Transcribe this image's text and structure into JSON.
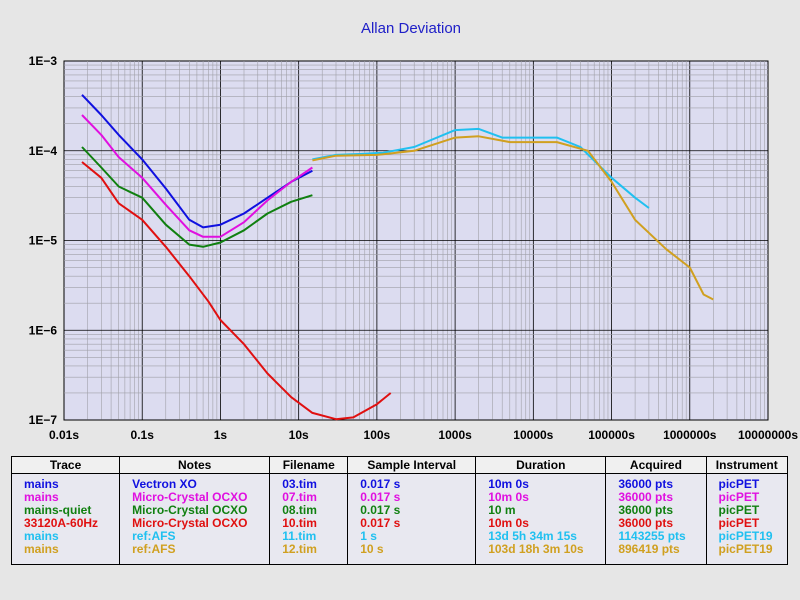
{
  "chart_data": {
    "type": "line",
    "title": "Allan Deviation",
    "xscale": "log",
    "yscale": "log",
    "xlim": [
      0.01,
      10000000
    ],
    "ylim": [
      1e-07,
      0.001
    ],
    "x_tick_labels": [
      "0.01s",
      "0.1s",
      "1s",
      "10s",
      "100s",
      "1000s",
      "10000s",
      "100000s",
      "1000000s",
      "10000000s"
    ],
    "y_tick_labels": [
      "1E−3",
      "1E−4",
      "1E−5",
      "1E−6",
      "1E−7"
    ],
    "series": [
      {
        "name": "Vectron XO",
        "color": "#1010e0",
        "points": [
          [
            0.017,
            0.00042
          ],
          [
            0.03,
            0.00025
          ],
          [
            0.05,
            0.00015
          ],
          [
            0.1,
            8e-05
          ],
          [
            0.2,
            3.8e-05
          ],
          [
            0.4,
            1.7e-05
          ],
          [
            0.6,
            1.4e-05
          ],
          [
            1,
            1.5e-05
          ],
          [
            2,
            2e-05
          ],
          [
            4,
            3e-05
          ],
          [
            8,
            4.5e-05
          ],
          [
            15,
            6e-05
          ]
        ]
      },
      {
        "name": "Micro-Crystal OCXO (mains)",
        "color": "#e010e0",
        "points": [
          [
            0.017,
            0.00025
          ],
          [
            0.03,
            0.00015
          ],
          [
            0.05,
            8.5e-05
          ],
          [
            0.1,
            5e-05
          ],
          [
            0.2,
            2.5e-05
          ],
          [
            0.4,
            1.3e-05
          ],
          [
            0.6,
            1.1e-05
          ],
          [
            1,
            1.1e-05
          ],
          [
            2,
            1.6e-05
          ],
          [
            4,
            2.8e-05
          ],
          [
            8,
            4.5e-05
          ],
          [
            15,
            6.5e-05
          ]
        ]
      },
      {
        "name": "Micro-Crystal OCXO (mains-quiet)",
        "color": "#108010",
        "points": [
          [
            0.017,
            0.00011
          ],
          [
            0.03,
            6.5e-05
          ],
          [
            0.05,
            4e-05
          ],
          [
            0.1,
            3e-05
          ],
          [
            0.2,
            1.5e-05
          ],
          [
            0.4,
            9e-06
          ],
          [
            0.6,
            8.5e-06
          ],
          [
            1,
            9.5e-06
          ],
          [
            2,
            1.3e-05
          ],
          [
            4,
            2e-05
          ],
          [
            8,
            2.7e-05
          ],
          [
            15,
            3.2e-05
          ]
        ]
      },
      {
        "name": "Micro-Crystal OCXO (33120A-60Hz)",
        "color": "#e01010",
        "points": [
          [
            0.017,
            7.5e-05
          ],
          [
            0.03,
            5e-05
          ],
          [
            0.05,
            2.6e-05
          ],
          [
            0.1,
            1.7e-05
          ],
          [
            0.2,
            8.5e-06
          ],
          [
            0.4,
            4e-06
          ],
          [
            0.7,
            2.1e-06
          ],
          [
            1,
            1.3e-06
          ],
          [
            2,
            7e-07
          ],
          [
            4,
            3.3e-07
          ],
          [
            8,
            1.8e-07
          ],
          [
            15,
            1.2e-07
          ],
          [
            30,
            1.02e-07
          ],
          [
            50,
            1.07e-07
          ],
          [
            100,
            1.5e-07
          ],
          [
            150,
            2e-07
          ]
        ]
      },
      {
        "name": "ref:AFS (mains)",
        "color": "#20c0f0",
        "points": [
          [
            15,
            8e-05
          ],
          [
            30,
            9e-05
          ],
          [
            60,
            9.2e-05
          ],
          [
            120,
            9.5e-05
          ],
          [
            300,
            0.00011
          ],
          [
            1000,
            0.00017
          ],
          [
            2000,
            0.000175
          ],
          [
            4000,
            0.00014
          ],
          [
            10000,
            0.00014
          ],
          [
            20000,
            0.00014
          ],
          [
            40000,
            0.00011
          ],
          [
            100000,
            5e-05
          ],
          [
            200000,
            3e-05
          ],
          [
            300000,
            2.3e-05
          ]
        ]
      },
      {
        "name": "ref:AFS (mains)",
        "color": "#d0a020",
        "points": [
          [
            15,
            7.8e-05
          ],
          [
            30,
            8.8e-05
          ],
          [
            100,
            9e-05
          ],
          [
            300,
            0.0001
          ],
          [
            1000,
            0.00014
          ],
          [
            2000,
            0.000145
          ],
          [
            5000,
            0.000125
          ],
          [
            10000,
            0.000125
          ],
          [
            20000,
            0.000125
          ],
          [
            50000,
            0.0001
          ],
          [
            100000,
            4.5e-05
          ],
          [
            200000,
            1.7e-05
          ],
          [
            500000,
            8e-06
          ],
          [
            1000000,
            5e-06
          ],
          [
            1500000,
            2.5e-06
          ],
          [
            2000000,
            2.2e-06
          ]
        ]
      }
    ]
  },
  "legend": {
    "headers": [
      "Trace",
      "Notes",
      "Filename",
      "Sample Interval",
      "Duration",
      "Acquired",
      "Instrument"
    ],
    "rows": [
      {
        "color": "#1010e0",
        "cells": [
          "mains",
          "Vectron XO",
          "03.tim",
          "0.017 s",
          "10m 0s",
          "36000 pts",
          "picPET"
        ]
      },
      {
        "color": "#e010e0",
        "cells": [
          "mains",
          "Micro-Crystal OCXO",
          "07.tim",
          "0.017 s",
          "10m 0s",
          "36000 pts",
          "picPET"
        ]
      },
      {
        "color": "#108010",
        "cells": [
          "mains-quiet",
          "Micro-Crystal OCXO",
          "08.tim",
          "0.017 s",
          "10 m",
          "36000 pts",
          "picPET"
        ]
      },
      {
        "color": "#e01010",
        "cells": [
          "33120A-60Hz",
          "Micro-Crystal OCXO",
          "10.tim",
          "0.017 s",
          "10m 0s",
          "36000 pts",
          "picPET"
        ]
      },
      {
        "color": "#20c0f0",
        "cells": [
          "mains",
          "ref:AFS",
          "11.tim",
          "1 s",
          "13d 5h 34m 15s",
          "1143255 pts",
          "picPET19"
        ]
      },
      {
        "color": "#d0a020",
        "cells": [
          "mains",
          "ref:AFS",
          "12.tim",
          "10 s",
          "103d 18h 3m 10s",
          "896419 pts",
          "picPET19"
        ]
      }
    ]
  }
}
